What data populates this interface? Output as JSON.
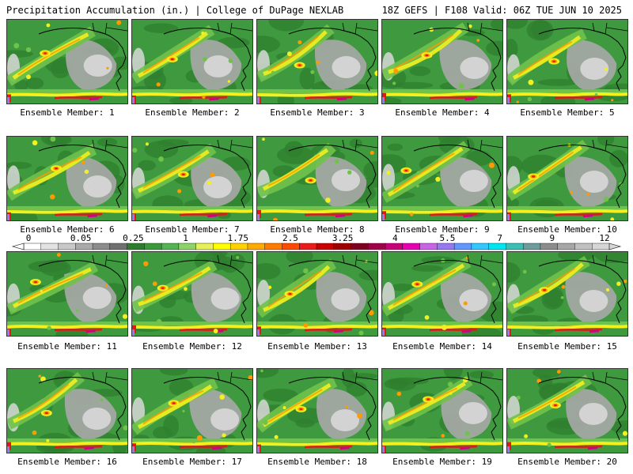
{
  "header": {
    "left": "Precipitation Accumulation (in.) | College of DuPage NEXLAB",
    "right": "18Z GEFS | F108 Valid: 06Z TUE JUN 10 2025"
  },
  "panels": [
    {
      "label": "Ensemble Member: 1"
    },
    {
      "label": "Ensemble Member: 2"
    },
    {
      "label": "Ensemble Member: 3"
    },
    {
      "label": "Ensemble Member: 4"
    },
    {
      "label": "Ensemble Member: 5"
    },
    {
      "label": "Ensemble Member: 6"
    },
    {
      "label": "Ensemble Member: 7"
    },
    {
      "label": "Ensemble Member: 8"
    },
    {
      "label": "Ensemble Member: 9"
    },
    {
      "label": "Ensemble Member: 10"
    },
    {
      "label": "Ensemble Member: 11"
    },
    {
      "label": "Ensemble Member: 12"
    },
    {
      "label": "Ensemble Member: 13"
    },
    {
      "label": "Ensemble Member: 14"
    },
    {
      "label": "Ensemble Member: 15"
    },
    {
      "label": "Ensemble Member: 16"
    },
    {
      "label": "Ensemble Member: 17"
    },
    {
      "label": "Ensemble Member: 18"
    },
    {
      "label": "Ensemble Member: 19"
    },
    {
      "label": "Ensemble Member: 20"
    }
  ],
  "colorbar": {
    "ticks": [
      "0",
      "0.05",
      "0.25",
      "1",
      "1.75",
      "2.5",
      "3.25",
      "4",
      "5.5",
      "7",
      "9",
      "12"
    ],
    "colors": [
      "#ffffff",
      "#e2e2e2",
      "#c8c8c8",
      "#aaaaaa",
      "#8c8c8c",
      "#707070",
      "#2e7d2e",
      "#3a9a3a",
      "#52b452",
      "#8fd26a",
      "#e6f05a",
      "#ffff00",
      "#ffd200",
      "#ffaa00",
      "#ff7a00",
      "#ff4a00",
      "#e81c1c",
      "#c80000",
      "#a00000",
      "#800020",
      "#a0004a",
      "#c8007a",
      "#e600b4",
      "#c864e6",
      "#9678f0",
      "#6496ff",
      "#32c8ff",
      "#00e6f0",
      "#3cbeb4",
      "#6e9c9c",
      "#8c8c8c",
      "#a6a6a6",
      "#c0c0c0",
      "#d6d6d6"
    ]
  },
  "map_colors": {
    "base_green": "#3f9a3f",
    "dark_green": "#2e7d2e",
    "light_green": "#6fc24a",
    "yellow": "#f2f01e",
    "orange": "#ff9a00",
    "red": "#e01818",
    "magenta": "#d0008a",
    "violet": "#9a78ee",
    "gray": "#a8a8a8",
    "light_gray": "#d8d8d8",
    "border": "#000000"
  }
}
